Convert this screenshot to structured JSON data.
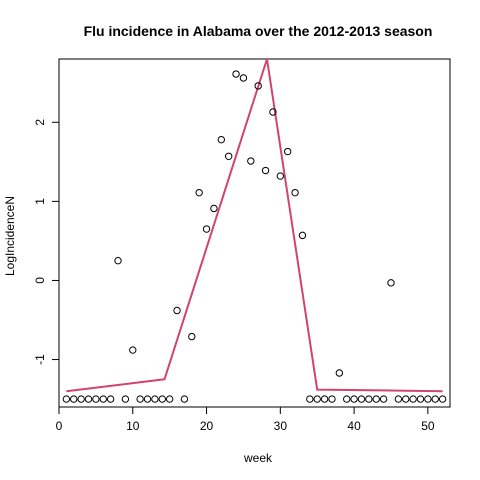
{
  "chart_data": {
    "type": "scatter",
    "title": "Flu incidence in Alabama over the 2012-2013 season",
    "xlabel": "week",
    "ylabel": "LogIncidenceN",
    "xlim": [
      0,
      53
    ],
    "ylim": [
      -1.6,
      2.8
    ],
    "x_ticks": [
      0,
      10,
      20,
      30,
      40,
      50
    ],
    "y_ticks": [
      -1,
      0,
      1,
      2
    ],
    "grid": false,
    "colors": {
      "points": "#000000",
      "fit_line": "#d1446b"
    },
    "points": [
      {
        "x": 1,
        "y": -1.5
      },
      {
        "x": 2,
        "y": -1.5
      },
      {
        "x": 3,
        "y": -1.5
      },
      {
        "x": 4,
        "y": -1.5
      },
      {
        "x": 5,
        "y": -1.5
      },
      {
        "x": 6,
        "y": -1.5
      },
      {
        "x": 7,
        "y": -1.5
      },
      {
        "x": 8,
        "y": 0.25
      },
      {
        "x": 9,
        "y": -1.5
      },
      {
        "x": 10,
        "y": -0.88
      },
      {
        "x": 11,
        "y": -1.5
      },
      {
        "x": 12,
        "y": -1.5
      },
      {
        "x": 13,
        "y": -1.5
      },
      {
        "x": 14,
        "y": -1.5
      },
      {
        "x": 15,
        "y": -1.5
      },
      {
        "x": 16,
        "y": -0.38
      },
      {
        "x": 17,
        "y": -1.5
      },
      {
        "x": 18,
        "y": -0.71
      },
      {
        "x": 19,
        "y": 1.11
      },
      {
        "x": 20,
        "y": 0.65
      },
      {
        "x": 21,
        "y": 0.91
      },
      {
        "x": 22,
        "y": 1.78
      },
      {
        "x": 23,
        "y": 1.57
      },
      {
        "x": 24,
        "y": 2.61
      },
      {
        "x": 25,
        "y": 2.56
      },
      {
        "x": 26,
        "y": 1.51
      },
      {
        "x": 27,
        "y": 2.46
      },
      {
        "x": 28,
        "y": 1.39
      },
      {
        "x": 29,
        "y": 2.13
      },
      {
        "x": 30,
        "y": 1.32
      },
      {
        "x": 31,
        "y": 1.63
      },
      {
        "x": 32,
        "y": 1.11
      },
      {
        "x": 33,
        "y": 0.57
      },
      {
        "x": 34,
        "y": -1.5
      },
      {
        "x": 35,
        "y": -1.5
      },
      {
        "x": 36,
        "y": -1.5
      },
      {
        "x": 37,
        "y": -1.5
      },
      {
        "x": 38,
        "y": -1.17
      },
      {
        "x": 39,
        "y": -1.5
      },
      {
        "x": 40,
        "y": -1.5
      },
      {
        "x": 41,
        "y": -1.5
      },
      {
        "x": 42,
        "y": -1.5
      },
      {
        "x": 43,
        "y": -1.5
      },
      {
        "x": 44,
        "y": -1.5
      },
      {
        "x": 45,
        "y": -0.03
      },
      {
        "x": 46,
        "y": -1.5
      },
      {
        "x": 47,
        "y": -1.5
      },
      {
        "x": 48,
        "y": -1.5
      },
      {
        "x": 49,
        "y": -1.5
      },
      {
        "x": 50,
        "y": -1.5
      },
      {
        "x": 51,
        "y": -1.5
      },
      {
        "x": 52,
        "y": -1.5
      }
    ],
    "fit_line": [
      {
        "x": 1,
        "y": -1.4
      },
      {
        "x": 14.3,
        "y": -1.25
      },
      {
        "x": 28.2,
        "y": 2.8
      },
      {
        "x": 35,
        "y": -1.38
      },
      {
        "x": 52,
        "y": -1.4
      }
    ]
  }
}
